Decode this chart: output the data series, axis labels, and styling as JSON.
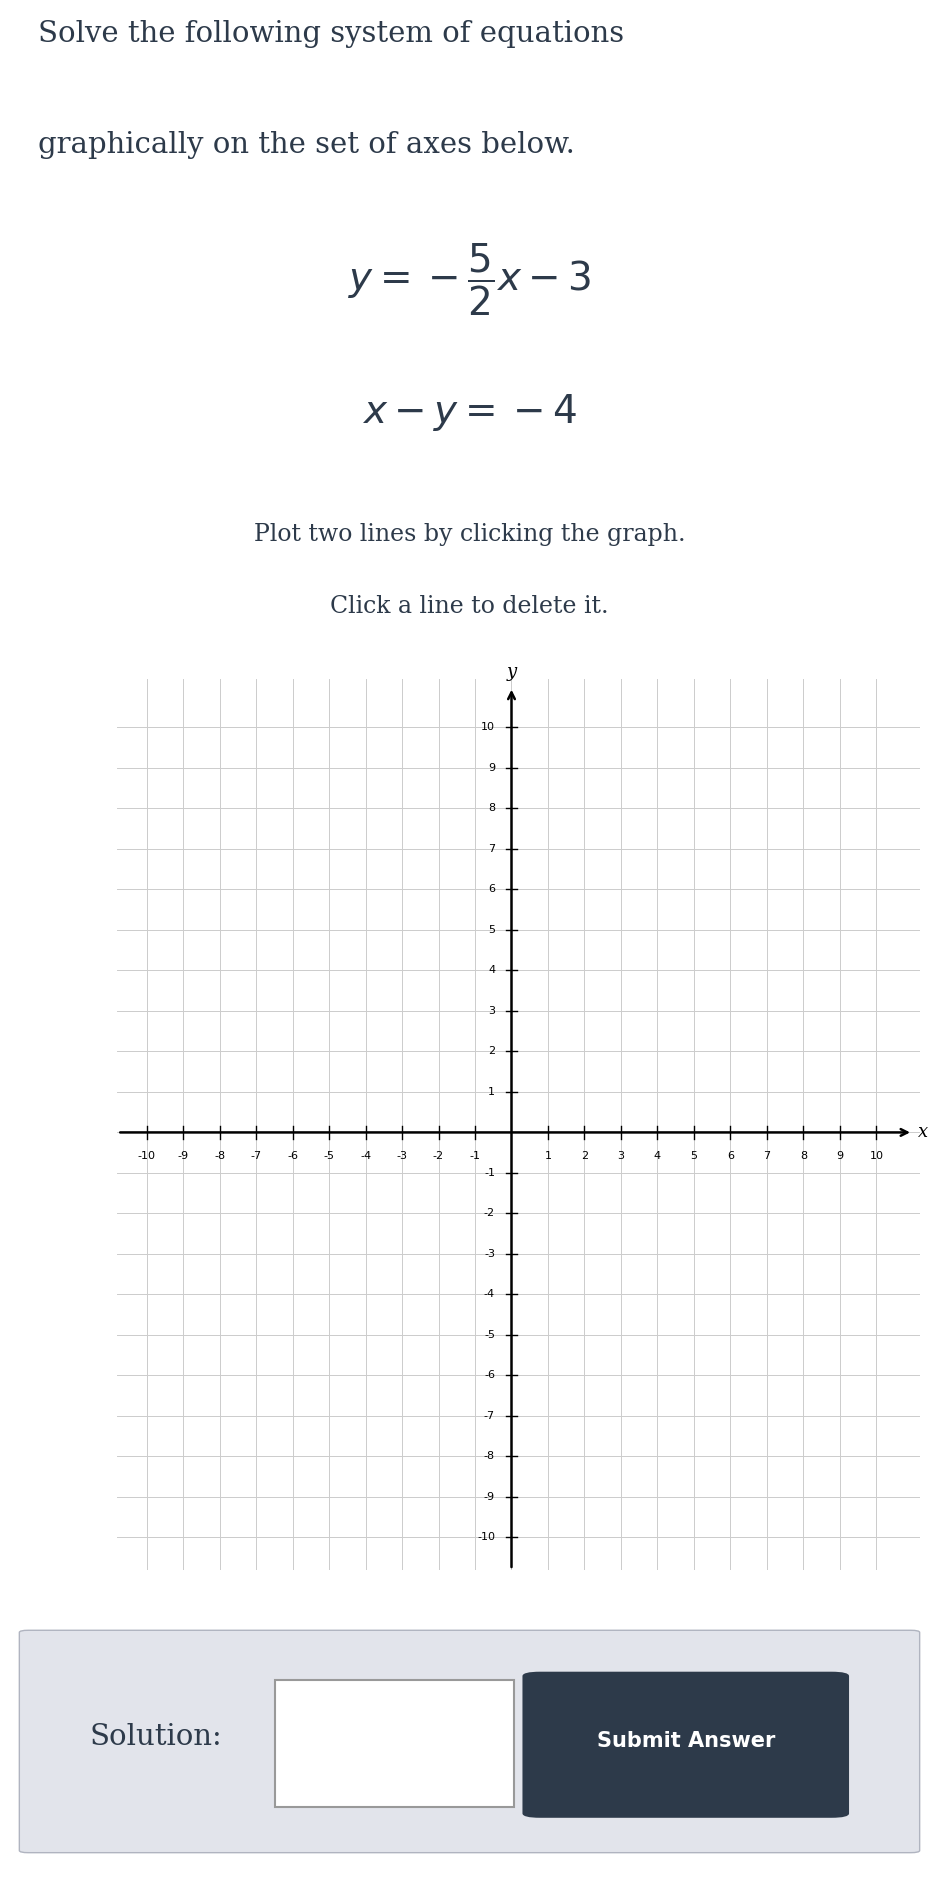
{
  "title_line1": "Solve the following system of equations",
  "title_line2": "graphically on the set of axes below.",
  "instruction_line1": "Plot two lines by clicking the graph.",
  "instruction_line2": "Click a line to delete it.",
  "axis_label_x": "x",
  "axis_label_y": "y",
  "xlim": [
    -10,
    10
  ],
  "ylim": [
    -10,
    10
  ],
  "grid_color": "#cccccc",
  "background_color": "#ffffff",
  "text_color": "#2d3a4a",
  "solution_label": "Solution:",
  "submit_button_text": "Submit Answer",
  "submit_button_color": "#2d3a4a",
  "bottom_panel_color": "#e2e4eb",
  "tick_fontsize": 8,
  "title_fontsize": 21,
  "eq_fontsize": 28,
  "instruction_fontsize": 17
}
